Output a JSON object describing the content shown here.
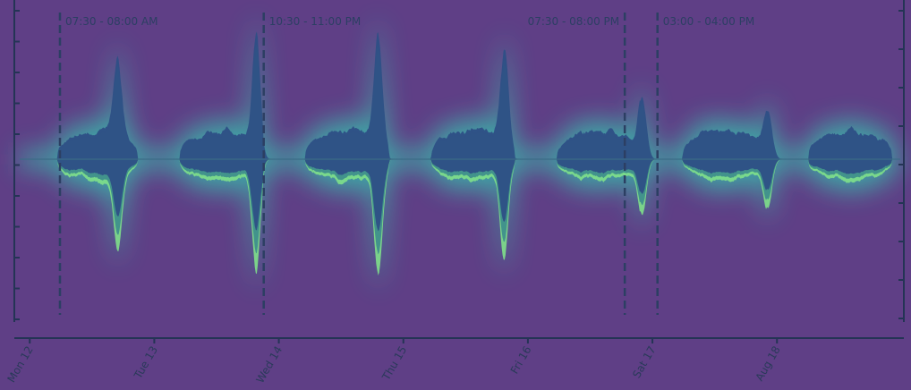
{
  "chart_data": {
    "type": "area",
    "style": "streamgraph",
    "title": "",
    "xlabel": "",
    "ylabel": "",
    "x_tick_labels": [
      "Mon 12",
      "Tue 13",
      "Wed 14",
      "Thu 15",
      "Fri 16",
      "Sat 17",
      "Aug 18"
    ],
    "annotations": [
      {
        "label": "07:30 - 08:00 AM",
        "day_offset": 0.32
      },
      {
        "label": "10:30 - 11:00 PM",
        "day_offset": 1.94
      },
      {
        "label": "07:30 - 08:00 PM",
        "day_offset": 4.81
      },
      {
        "label": "03:00 - 04:00 PM",
        "day_offset": 5.07
      }
    ],
    "day_range": [
      0,
      7
    ],
    "activity_peaks": [
      {
        "day_offset": 0.78,
        "relative_height": 0.72
      },
      {
        "day_offset": 1.88,
        "relative_height": 0.95
      },
      {
        "day_offset": 2.85,
        "relative_height": 1.0
      },
      {
        "day_offset": 3.85,
        "relative_height": 0.8
      },
      {
        "day_offset": 4.95,
        "relative_height": 0.55
      },
      {
        "day_offset": 5.95,
        "relative_height": 0.45
      }
    ],
    "grid": false,
    "legend": "none",
    "colors": {
      "background": "#5f3f86",
      "stream_core": "#2e4f86",
      "stream_mid": "#3f8f8c",
      "stream_edge": "#7fe08a",
      "glow": "#35c8b0",
      "axis": "#243455",
      "annotation_line": "#2c3f63"
    }
  }
}
